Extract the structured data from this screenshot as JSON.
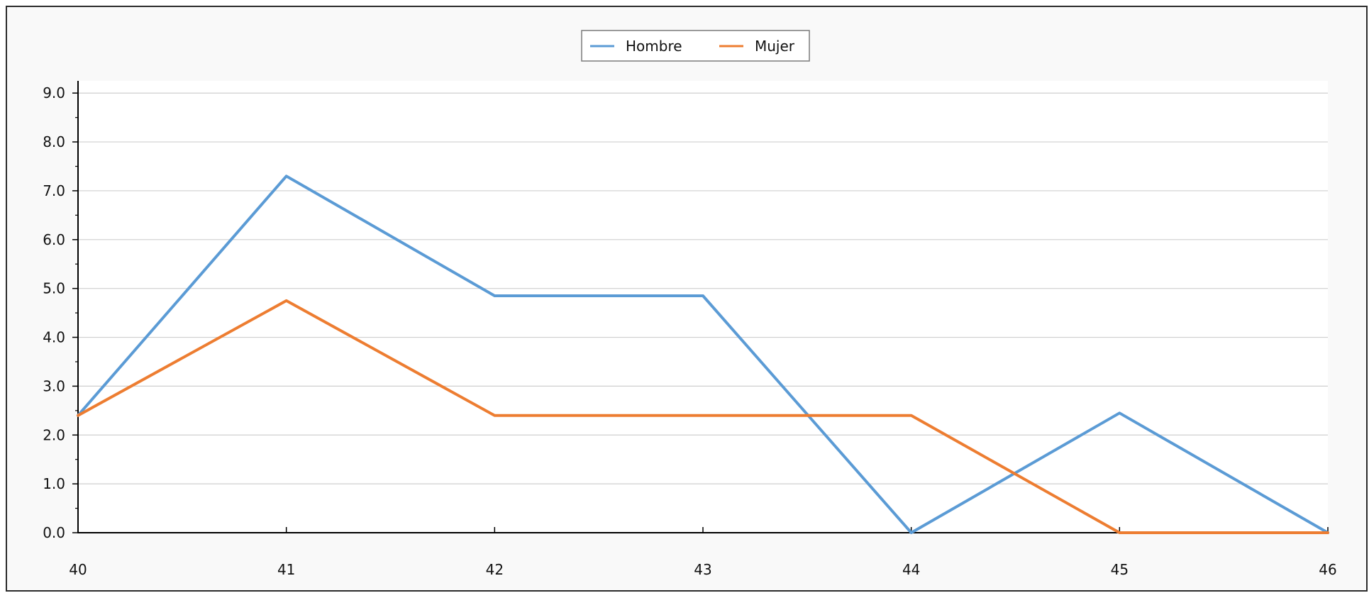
{
  "chart_data": {
    "type": "line",
    "x": [
      40,
      41,
      42,
      43,
      44,
      45,
      46
    ],
    "series": [
      {
        "name": "Hombre",
        "color": "#5b9bd5",
        "values": [
          2.4,
          7.3,
          4.85,
          4.85,
          0.0,
          2.45,
          0.0
        ]
      },
      {
        "name": "Mujer",
        "color": "#ed7d31",
        "values": [
          2.4,
          4.75,
          2.4,
          2.4,
          2.4,
          0.0,
          0.0
        ]
      }
    ],
    "x_ticks": [
      "40",
      "41",
      "42",
      "43",
      "44",
      "45",
      "46"
    ],
    "y_ticks": [
      "0.0",
      "1.0",
      "2.0",
      "3.0",
      "4.0",
      "5.0",
      "6.0",
      "7.0",
      "8.0",
      "9.0"
    ],
    "xlim": [
      40,
      46
    ],
    "ylim": [
      0,
      9.25
    ],
    "grid": true,
    "legend_position": "top-center",
    "title": "",
    "xlabel": "",
    "ylabel": ""
  }
}
